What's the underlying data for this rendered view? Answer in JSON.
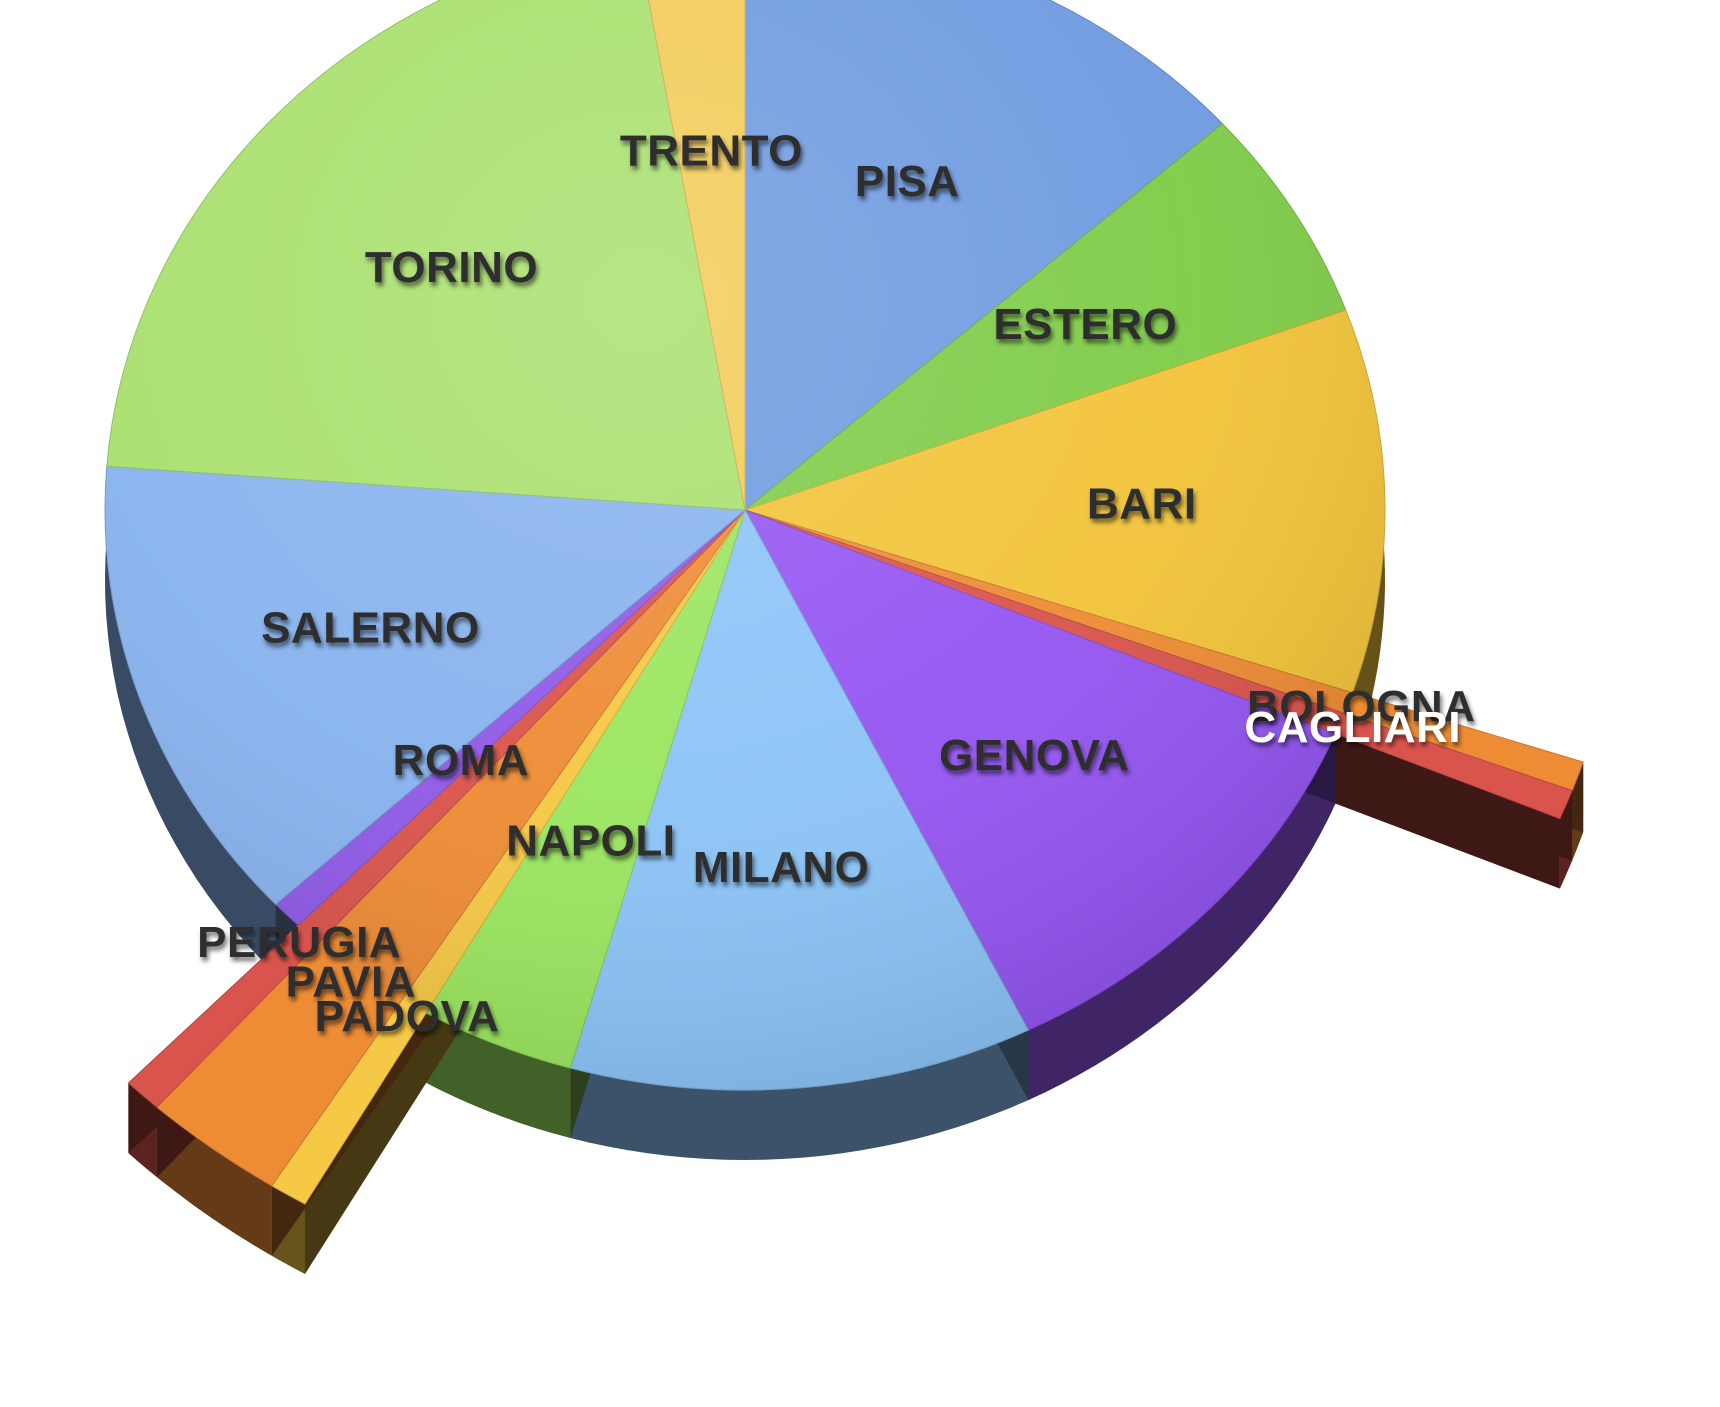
{
  "chart_data": {
    "type": "pie",
    "style": "3d-exploded",
    "start_angle_deg": 0,
    "direction": "clockwise",
    "legend": "none",
    "slices": [
      {
        "label": "PISA",
        "value": 13.4,
        "color": "#6f9be0",
        "explode": false
      },
      {
        "label": "ESTERO",
        "value": 6.0,
        "color": "#7fcc48",
        "explode": false
      },
      {
        "label": "BARI",
        "value": 10.7,
        "color": "#f2c43a",
        "explode": false
      },
      {
        "label": "BOLOGNA",
        "value": 0.6,
        "color": "#ee8c35",
        "explode": true
      },
      {
        "label": "CAGLIARI",
        "value": 0.6,
        "color": "#d9544c",
        "explode": true
      },
      {
        "label": "GENOVA",
        "value": 11.4,
        "color": "#9556f2",
        "explode": false
      },
      {
        "label": "MILANO",
        "value": 11.7,
        "color": "#8cc4f7",
        "explode": false
      },
      {
        "label": "NAPOLI",
        "value": 3.9,
        "color": "#9be660",
        "explode": false
      },
      {
        "label": "PADOVA",
        "value": 0.7,
        "color": "#f5c845",
        "explode": true
      },
      {
        "label": "PAVIA",
        "value": 2.6,
        "color": "#ee8c35",
        "explode": true
      },
      {
        "label": "PERUGIA",
        "value": 0.7,
        "color": "#d9544c",
        "explode": true
      },
      {
        "label": "ROMA",
        "value": 0.8,
        "color": "#8f5ae6",
        "explode": false
      },
      {
        "label": "SALERNO",
        "value": 13.1,
        "color": "#88b3ee",
        "explode": false
      },
      {
        "label": "TORINO",
        "value": 21.1,
        "color": "#a9e06e",
        "explode": false
      },
      {
        "label": "TRENTO",
        "value": 2.7,
        "color": "#f2cc58",
        "explode": false
      }
    ]
  }
}
